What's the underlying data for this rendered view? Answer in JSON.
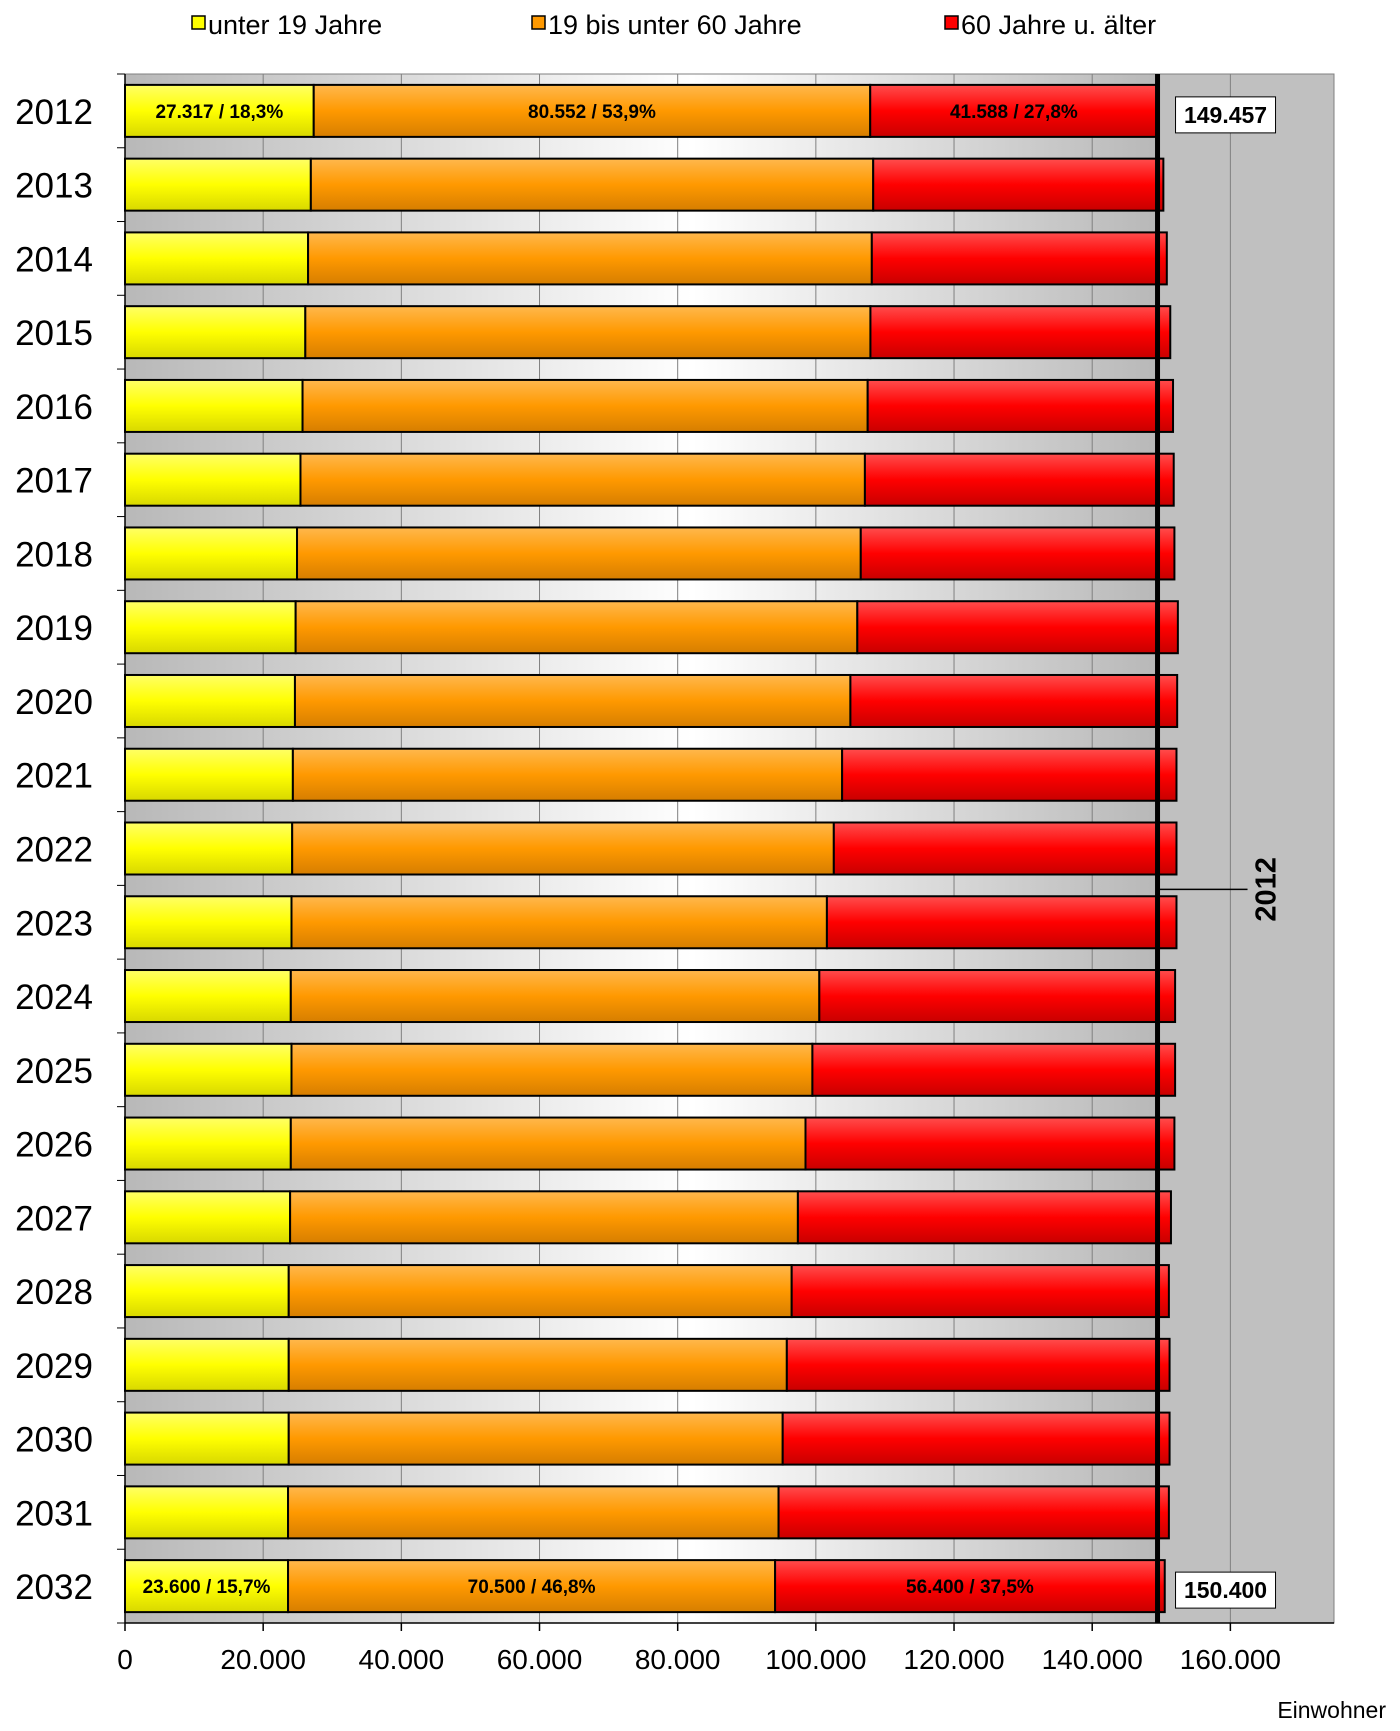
{
  "chart_data": {
    "type": "bar",
    "orientation": "horizontal",
    "stacked": true,
    "categories": [
      "2012",
      "2013",
      "2014",
      "2015",
      "2016",
      "2017",
      "2018",
      "2019",
      "2020",
      "2021",
      "2022",
      "2023",
      "2024",
      "2025",
      "2026",
      "2027",
      "2028",
      "2029",
      "2030",
      "2031",
      "2032"
    ],
    "series": [
      {
        "name": "unter 19 Jahre",
        "color": "#ffff00",
        "values": [
          27317,
          26900,
          26500,
          26100,
          25700,
          25400,
          24900,
          24700,
          24600,
          24300,
          24200,
          24100,
          24000,
          24100,
          24000,
          23900,
          23700,
          23700,
          23700,
          23600,
          23600
        ]
      },
      {
        "name": "19 bis unter 60 Jahre",
        "color": "#ff9900",
        "values": [
          80552,
          81400,
          81600,
          81800,
          81800,
          81700,
          81600,
          81300,
          80400,
          79500,
          78400,
          77500,
          76500,
          75400,
          74500,
          73500,
          72800,
          72100,
          71500,
          71000,
          70500
        ]
      },
      {
        "name": "60 Jahre u. älter",
        "color": "#ff0000",
        "values": [
          41588,
          42000,
          42700,
          43400,
          44200,
          44700,
          45400,
          46400,
          47300,
          48400,
          49600,
          50600,
          51500,
          52500,
          53400,
          54000,
          54600,
          55400,
          56000,
          56500,
          56400
        ]
      }
    ],
    "segment_labels": {
      "2012": [
        "27.317 / 18,3%",
        "80.552 / 53,9%",
        "41.588 / 27,8%"
      ],
      "2032": [
        "23.600 / 15,7%",
        "70.500 / 46,8%",
        "56.400 / 37,5%"
      ]
    },
    "total_labels": {
      "2012": "149.457",
      "2032": "150.400"
    },
    "reference_line": {
      "value": 149457,
      "label": "2012"
    },
    "x_ticks": [
      0,
      20000,
      40000,
      60000,
      80000,
      100000,
      120000,
      140000,
      160000
    ],
    "x_tick_labels": [
      "0",
      "20.000",
      "40.000",
      "60.000",
      "80.000",
      "100.000",
      "120.000",
      "140.000",
      "160.000"
    ],
    "xlim": [
      0,
      175000
    ],
    "xlabel": "Einwohner",
    "ylabel": "",
    "title": "",
    "grid": true,
    "legend_position": "top"
  }
}
